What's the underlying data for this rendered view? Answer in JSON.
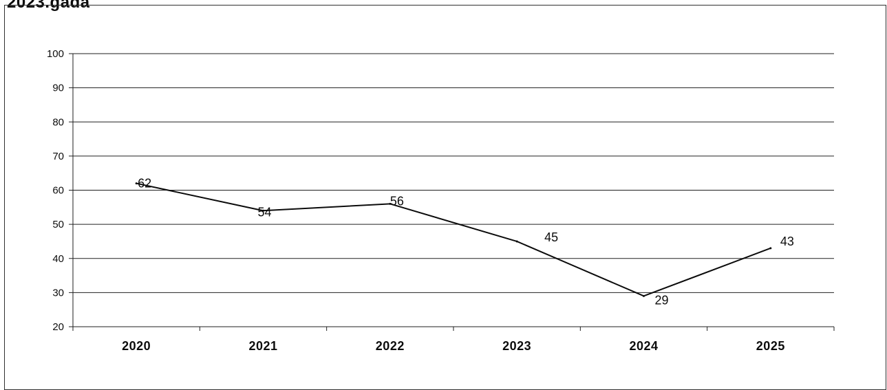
{
  "page": {
    "heading": "2023.gadā"
  },
  "chart_data": {
    "type": "line",
    "title": "",
    "xlabel": "",
    "ylabel": "",
    "categories": [
      "2020",
      "2021",
      "2022",
      "2023",
      "2024",
      "2025"
    ],
    "series": [
      {
        "values": [
          62,
          54,
          56,
          45,
          29,
          43
        ]
      }
    ],
    "ylim": [
      20,
      100
    ],
    "yticks": [
      20,
      30,
      40,
      50,
      60,
      70,
      80,
      90,
      100
    ],
    "grid": "horizontal",
    "data_labels": true,
    "legend": "none",
    "line_color": "#111111"
  }
}
